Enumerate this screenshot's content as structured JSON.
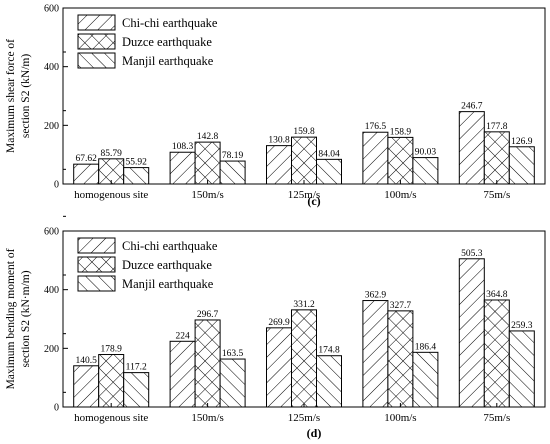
{
  "chart_data": [
    {
      "type": "bar",
      "panel_label": "(c)",
      "ylabel_lines": [
        "Maximum shear force of",
        "section S2 (kN/m)"
      ],
      "ylim": [
        0,
        600
      ],
      "yticks": [
        "0",
        "200",
        "400",
        "600"
      ],
      "categories": [
        "homogenous site",
        "150m/s",
        "125m/s",
        "100m/s",
        "75m/s"
      ],
      "legend_position": "top-left",
      "series": [
        {
          "name": "Chi-chi earthquake",
          "pattern": "hatch-diag",
          "values": [
            67.62,
            108.3,
            130.8,
            176.5,
            246.7
          ],
          "labels": [
            "67.62",
            "108.3",
            "130.8",
            "176.5",
            "246.7"
          ]
        },
        {
          "name": "Duzce earthquake",
          "pattern": "hatch-cross",
          "values": [
            85.79,
            142.8,
            159.8,
            158.9,
            177.8
          ],
          "labels": [
            "85.79",
            "142.8",
            "159.8",
            "158.9",
            "177.8"
          ]
        },
        {
          "name": "Manjil earthquake",
          "pattern": "hatch-back",
          "values": [
            55.92,
            78.19,
            84.04,
            90.03,
            126.9
          ],
          "labels": [
            "55.92",
            "78.19",
            "84.04",
            "90.03",
            "126.9"
          ]
        }
      ]
    },
    {
      "type": "bar",
      "panel_label": "(d)",
      "ylabel_lines": [
        "Maximum bending moment of",
        "section S2 (kN·m/m)"
      ],
      "ylim": [
        0,
        600
      ],
      "yticks": [
        "0",
        "200",
        "400",
        "600"
      ],
      "categories": [
        "homogenous site",
        "150m/s",
        "125m/s",
        "100m/s",
        "75m/s"
      ],
      "legend_position": "top-left",
      "series": [
        {
          "name": "Chi-chi earthquake",
          "pattern": "hatch-diag",
          "values": [
            140.5,
            224,
            269.9,
            362.9,
            505.3
          ],
          "labels": [
            "140.5",
            "224",
            "269.9",
            "362.9",
            "505.3"
          ]
        },
        {
          "name": "Duzce earthquake",
          "pattern": "hatch-cross",
          "values": [
            178.9,
            296.7,
            331.2,
            327.7,
            364.8
          ],
          "labels": [
            "178.9",
            "296.7",
            "331.2",
            "327.7",
            "364.8"
          ]
        },
        {
          "name": "Manjil earthquake",
          "pattern": "hatch-back",
          "values": [
            117.2,
            163.5,
            174.8,
            186.4,
            259.3
          ],
          "labels": [
            "117.2",
            "163.5",
            "174.8",
            "186.4",
            "259.3"
          ]
        }
      ]
    }
  ]
}
